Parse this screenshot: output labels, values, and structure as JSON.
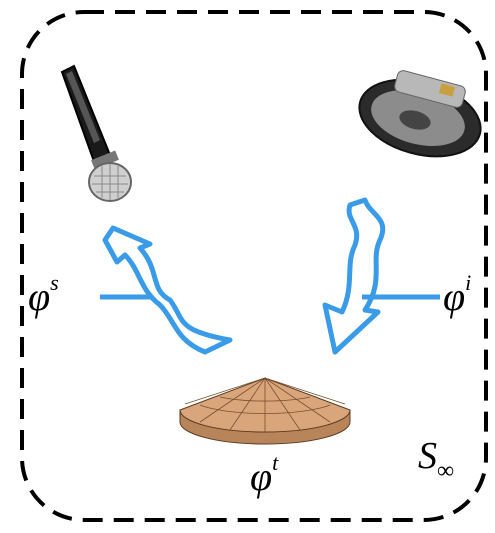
{
  "labels": {
    "scattered": {
      "base": "φ",
      "sup": "s"
    },
    "incident": {
      "base": "φ",
      "sup": "i"
    },
    "total": {
      "base": "φ",
      "sup": "t"
    },
    "boundary": {
      "base": "S",
      "sub": "∞"
    }
  }
}
